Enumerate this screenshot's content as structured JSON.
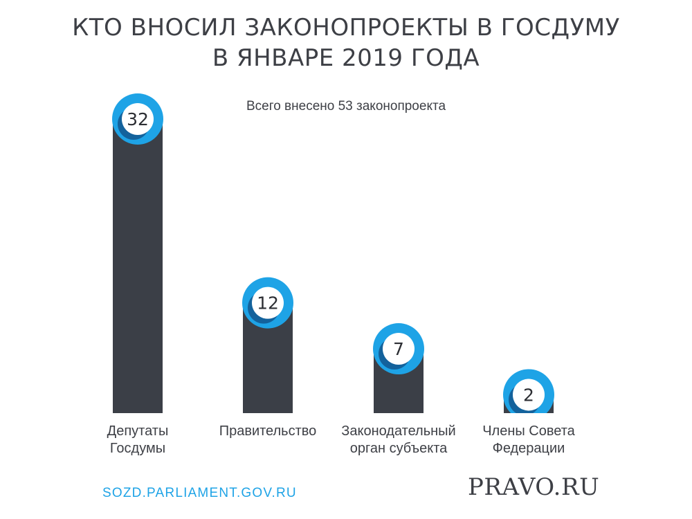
{
  "chart_data": {
    "type": "bar",
    "title_lines": [
      "КТО ВНОСИЛ ЗАКОНОПРОЕКТЫ В ГОСДУМУ",
      "В ЯНВАРЕ 2019 ГОДА"
    ],
    "subtitle": "Всего внесено 53 законопроекта",
    "categories": [
      [
        "Депутаты",
        "Госдумы"
      ],
      [
        "Правительство"
      ],
      [
        "Законодательный",
        "орган субъекта"
      ],
      [
        "Члены Совета",
        "Федерации"
      ]
    ],
    "values": [
      32,
      12,
      7,
      2
    ],
    "ylim": [
      0,
      32
    ],
    "grid": false,
    "colors": {
      "bar": "#3b3f47",
      "marker": "#1ea3e6",
      "marker_inner": "#ffffff"
    }
  },
  "footer": {
    "source": "SOZD.PARLIAMENT.GOV.RU",
    "brand": "PRAVO.RU"
  }
}
